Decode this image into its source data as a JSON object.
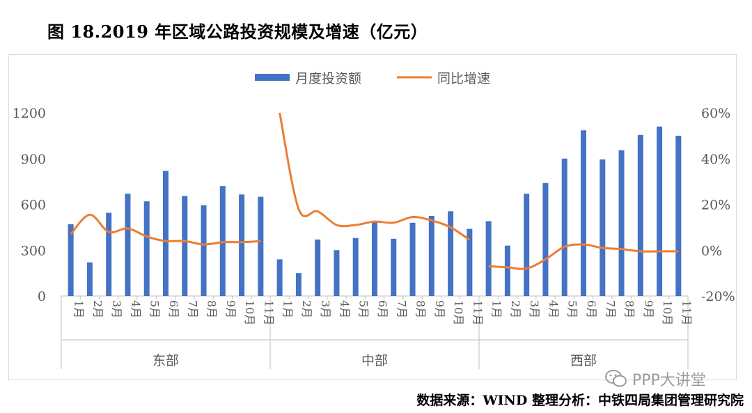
{
  "title": "图 18.2019 年区域公路投资规模及增速（亿元）",
  "source": "数据来源：WIND  整理分析：中铁四局集团管理研究院",
  "watermark": "PPP大讲堂",
  "chart_data": {
    "type": "bar+line",
    "legend": [
      "月度投资额",
      "同比增速"
    ],
    "legend_position": "top-center",
    "colors": {
      "bar": "#4472C4",
      "line": "#ED7D31"
    },
    "y_left": {
      "ticks": [
        "0",
        "300",
        "600",
        "900",
        "1200"
      ],
      "range": [
        0,
        1200
      ]
    },
    "y_right": {
      "ticks": [
        "-20%",
        "0%",
        "20%",
        "40%",
        "60%"
      ],
      "range": [
        -20,
        60
      ]
    },
    "months": [
      "1月",
      "2月",
      "3月",
      "4月",
      "5月",
      "6月",
      "7月",
      "8月",
      "9月",
      "10月",
      "11月"
    ],
    "groups": [
      {
        "name": "东部",
        "bar_months": [
          0,
          1,
          2,
          3,
          4,
          5,
          6,
          7,
          8,
          9,
          10
        ],
        "bars": [
          470,
          220,
          545,
          670,
          620,
          820,
          655,
          595,
          720,
          665,
          650
        ],
        "line_months": [
          0,
          1,
          2,
          3,
          4,
          5,
          6,
          7,
          8,
          9,
          10
        ],
        "growth": [
          7,
          15.5,
          8,
          9.5,
          6,
          4,
          4,
          2.5,
          3.5,
          3.5,
          4
        ]
      },
      {
        "name": "中部",
        "bar_months": [
          0,
          1,
          2,
          3,
          4,
          5,
          6,
          7,
          8,
          9,
          10
        ],
        "bars": [
          240,
          150,
          370,
          300,
          380,
          490,
          375,
          480,
          525,
          555,
          440
        ],
        "line_months": [
          0,
          1,
          2,
          3,
          4,
          5,
          6,
          7,
          8,
          9,
          10
        ],
        "growth": [
          60,
          18,
          17,
          11,
          11,
          12.5,
          12,
          14.5,
          13,
          10,
          4.5
        ]
      },
      {
        "name": "西部",
        "bar_months": [
          0,
          1,
          2,
          3,
          4,
          5,
          6,
          7,
          8,
          9,
          10
        ],
        "bars": [
          490,
          330,
          670,
          740,
          900,
          1085,
          895,
          955,
          1055,
          1110,
          1050
        ],
        "line_months": [
          0,
          1,
          2,
          3,
          4,
          5,
          6,
          7,
          8,
          9,
          10
        ],
        "growth": [
          -7,
          -7.5,
          -8,
          -4,
          1.5,
          2.5,
          1,
          0.5,
          -0.5,
          -0.5,
          -0.5
        ]
      }
    ]
  }
}
